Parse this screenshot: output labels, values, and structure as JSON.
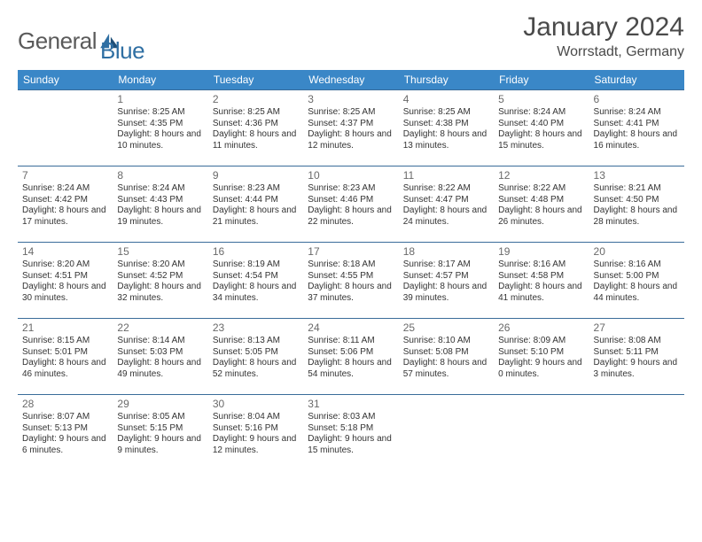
{
  "brand": {
    "name_part1": "General",
    "name_part2": "Blue"
  },
  "title": "January 2024",
  "location": "Worrstadt, Germany",
  "colors": {
    "header_bg": "#3a87c7",
    "header_text": "#ffffff",
    "row_border": "#3a6c9a",
    "text": "#333333",
    "daynum": "#6a6a6a",
    "logo_gray": "#5a5a5a",
    "logo_blue": "#2f6fa3"
  },
  "day_headers": [
    "Sunday",
    "Monday",
    "Tuesday",
    "Wednesday",
    "Thursday",
    "Friday",
    "Saturday"
  ],
  "weeks": [
    [
      null,
      {
        "n": "1",
        "sr": "8:25 AM",
        "ss": "4:35 PM",
        "dl": "8 hours and 10 minutes."
      },
      {
        "n": "2",
        "sr": "8:25 AM",
        "ss": "4:36 PM",
        "dl": "8 hours and 11 minutes."
      },
      {
        "n": "3",
        "sr": "8:25 AM",
        "ss": "4:37 PM",
        "dl": "8 hours and 12 minutes."
      },
      {
        "n": "4",
        "sr": "8:25 AM",
        "ss": "4:38 PM",
        "dl": "8 hours and 13 minutes."
      },
      {
        "n": "5",
        "sr": "8:24 AM",
        "ss": "4:40 PM",
        "dl": "8 hours and 15 minutes."
      },
      {
        "n": "6",
        "sr": "8:24 AM",
        "ss": "4:41 PM",
        "dl": "8 hours and 16 minutes."
      }
    ],
    [
      {
        "n": "7",
        "sr": "8:24 AM",
        "ss": "4:42 PM",
        "dl": "8 hours and 17 minutes."
      },
      {
        "n": "8",
        "sr": "8:24 AM",
        "ss": "4:43 PM",
        "dl": "8 hours and 19 minutes."
      },
      {
        "n": "9",
        "sr": "8:23 AM",
        "ss": "4:44 PM",
        "dl": "8 hours and 21 minutes."
      },
      {
        "n": "10",
        "sr": "8:23 AM",
        "ss": "4:46 PM",
        "dl": "8 hours and 22 minutes."
      },
      {
        "n": "11",
        "sr": "8:22 AM",
        "ss": "4:47 PM",
        "dl": "8 hours and 24 minutes."
      },
      {
        "n": "12",
        "sr": "8:22 AM",
        "ss": "4:48 PM",
        "dl": "8 hours and 26 minutes."
      },
      {
        "n": "13",
        "sr": "8:21 AM",
        "ss": "4:50 PM",
        "dl": "8 hours and 28 minutes."
      }
    ],
    [
      {
        "n": "14",
        "sr": "8:20 AM",
        "ss": "4:51 PM",
        "dl": "8 hours and 30 minutes."
      },
      {
        "n": "15",
        "sr": "8:20 AM",
        "ss": "4:52 PM",
        "dl": "8 hours and 32 minutes."
      },
      {
        "n": "16",
        "sr": "8:19 AM",
        "ss": "4:54 PM",
        "dl": "8 hours and 34 minutes."
      },
      {
        "n": "17",
        "sr": "8:18 AM",
        "ss": "4:55 PM",
        "dl": "8 hours and 37 minutes."
      },
      {
        "n": "18",
        "sr": "8:17 AM",
        "ss": "4:57 PM",
        "dl": "8 hours and 39 minutes."
      },
      {
        "n": "19",
        "sr": "8:16 AM",
        "ss": "4:58 PM",
        "dl": "8 hours and 41 minutes."
      },
      {
        "n": "20",
        "sr": "8:16 AM",
        "ss": "5:00 PM",
        "dl": "8 hours and 44 minutes."
      }
    ],
    [
      {
        "n": "21",
        "sr": "8:15 AM",
        "ss": "5:01 PM",
        "dl": "8 hours and 46 minutes."
      },
      {
        "n": "22",
        "sr": "8:14 AM",
        "ss": "5:03 PM",
        "dl": "8 hours and 49 minutes."
      },
      {
        "n": "23",
        "sr": "8:13 AM",
        "ss": "5:05 PM",
        "dl": "8 hours and 52 minutes."
      },
      {
        "n": "24",
        "sr": "8:11 AM",
        "ss": "5:06 PM",
        "dl": "8 hours and 54 minutes."
      },
      {
        "n": "25",
        "sr": "8:10 AM",
        "ss": "5:08 PM",
        "dl": "8 hours and 57 minutes."
      },
      {
        "n": "26",
        "sr": "8:09 AM",
        "ss": "5:10 PM",
        "dl": "9 hours and 0 minutes."
      },
      {
        "n": "27",
        "sr": "8:08 AM",
        "ss": "5:11 PM",
        "dl": "9 hours and 3 minutes."
      }
    ],
    [
      {
        "n": "28",
        "sr": "8:07 AM",
        "ss": "5:13 PM",
        "dl": "9 hours and 6 minutes."
      },
      {
        "n": "29",
        "sr": "8:05 AM",
        "ss": "5:15 PM",
        "dl": "9 hours and 9 minutes."
      },
      {
        "n": "30",
        "sr": "8:04 AM",
        "ss": "5:16 PM",
        "dl": "9 hours and 12 minutes."
      },
      {
        "n": "31",
        "sr": "8:03 AM",
        "ss": "5:18 PM",
        "dl": "9 hours and 15 minutes."
      },
      null,
      null,
      null
    ]
  ],
  "labels": {
    "sunrise": "Sunrise: ",
    "sunset": "Sunset: ",
    "daylight": "Daylight: "
  }
}
